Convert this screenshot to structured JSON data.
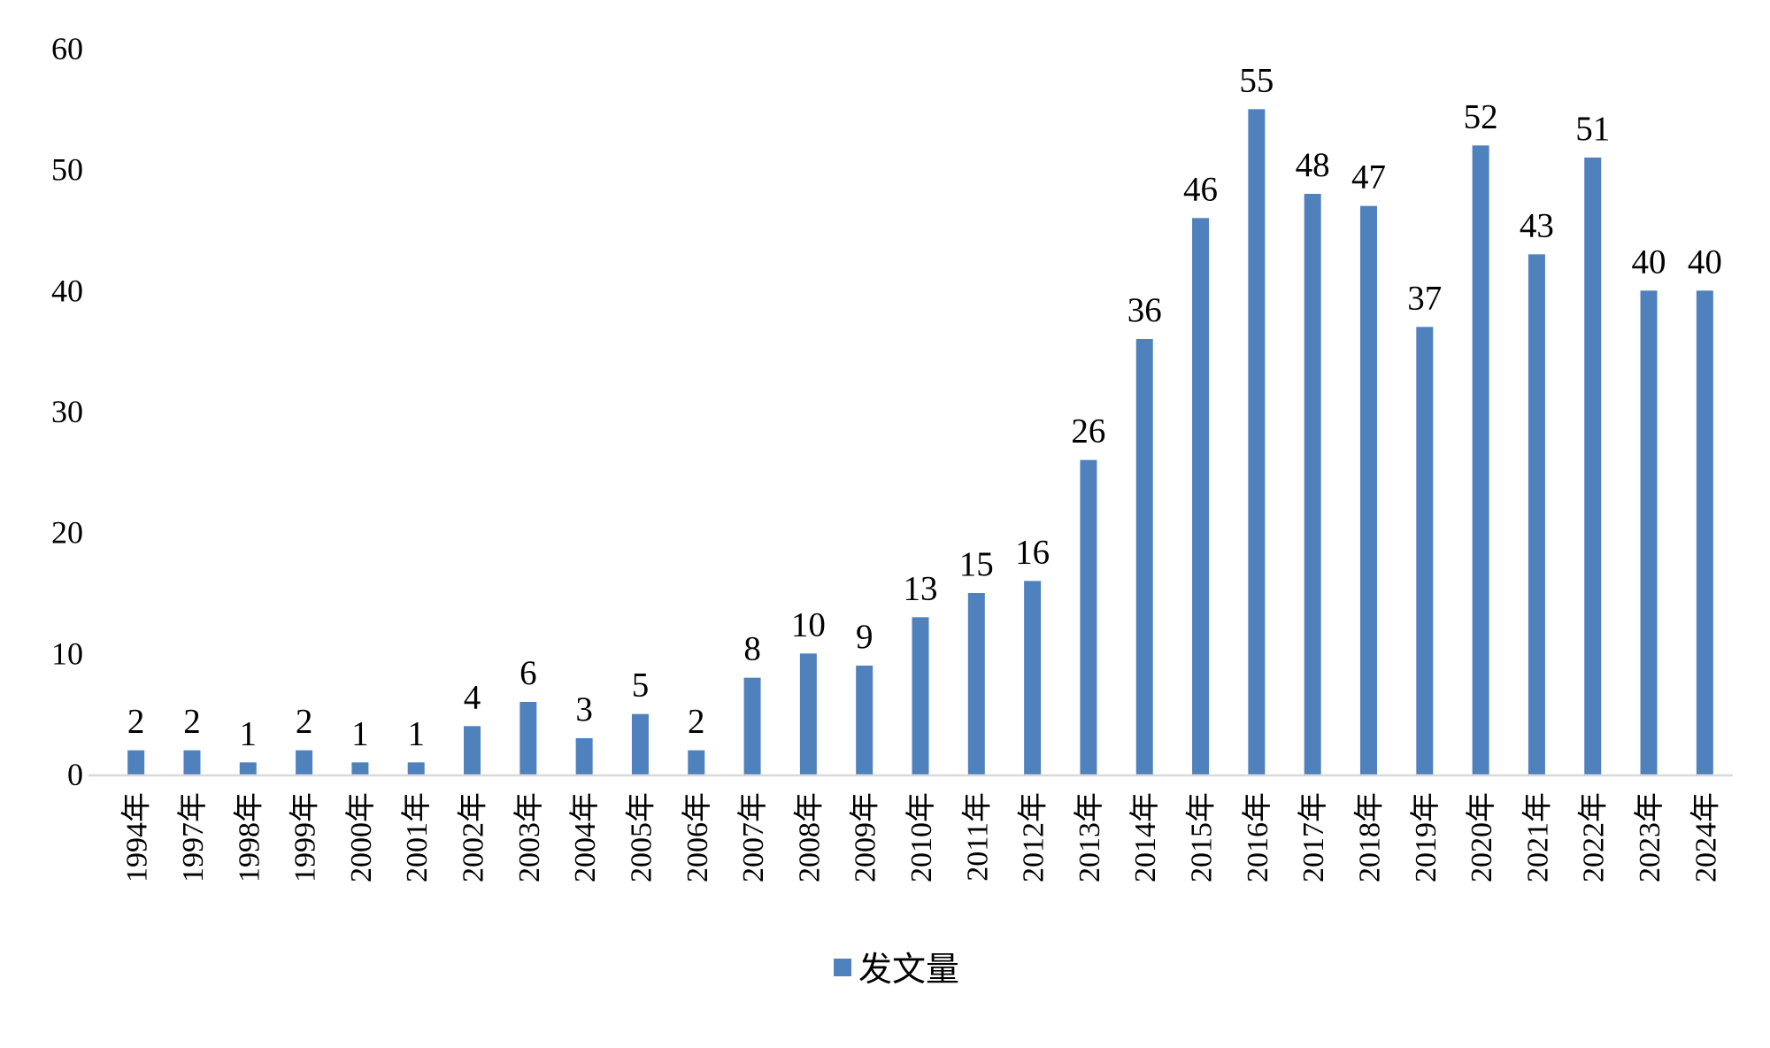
{
  "chart_data": {
    "type": "bar",
    "categories": [
      "1994年",
      "1997年",
      "1998年",
      "1999年",
      "2000年",
      "2001年",
      "2002年",
      "2003年",
      "2004年",
      "2005年",
      "2006年",
      "2007年",
      "2008年",
      "2009年",
      "2010年",
      "2011年",
      "2012年",
      "2013年",
      "2014年",
      "2015年",
      "2016年",
      "2017年",
      "2018年",
      "2019年",
      "2020年",
      "2021年",
      "2022年",
      "2023年",
      "2024年"
    ],
    "series": [
      {
        "name": "发文量",
        "values": [
          2,
          2,
          1,
          2,
          1,
          1,
          4,
          6,
          3,
          5,
          2,
          8,
          10,
          9,
          13,
          15,
          16,
          26,
          36,
          46,
          55,
          48,
          47,
          37,
          52,
          43,
          51,
          40,
          40
        ]
      }
    ],
    "ylim": [
      0,
      60
    ],
    "yticks": [
      0,
      10,
      20,
      30,
      40,
      50,
      60
    ],
    "data_labels": true,
    "grid": false,
    "legend": "bottom-center",
    "colors": {
      "bar": "#4f81bd",
      "axis": "#d9d9d9"
    }
  }
}
